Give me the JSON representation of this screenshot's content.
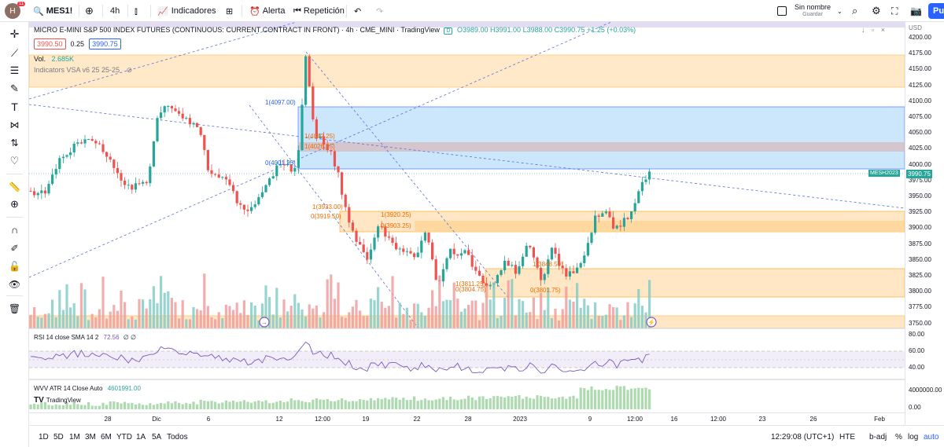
{
  "toolbar": {
    "symbol": "MES1!",
    "badge": "11",
    "interval": "4h",
    "indicators": "Indicadores",
    "alert": "Alerta",
    "replay": "Repetición",
    "layout_name": "Sin nombre",
    "save": "Guardar",
    "publish": "Pu"
  },
  "header": {
    "title": "MICRO E-MINI S&P 500 INDEX FUTURES (CONTINUOUS: CURRENT CONTRACT IN FRONT) · 4h · CME_MINI · TradingView",
    "flag": "D",
    "ohlc": "O3989.00 H3991.00 L3988.00 C3990.75 +1.25 (+0.03%)",
    "bid": "3990.50",
    "spread": "0.25",
    "ask": "3990.75",
    "vol_label": "Vol.",
    "vol_value": "2.685K",
    "vsa": "Indicators VSA v6 25 25-25"
  },
  "rsi": {
    "label": "RSI 14 close SMA 14 2",
    "value": "72.56",
    "extra": "∅ ∅",
    "ticks": [
      "80.00",
      "60.00",
      "40.00"
    ]
  },
  "wvv": {
    "label": "WVV ATR 14 Close Auto",
    "value": "4601991.00",
    "ticks": [
      "4000000.00",
      "0.00"
    ],
    "logo": "TradingView"
  },
  "price_axis": {
    "currency": "USD",
    "ticks": [
      "4200.00",
      "4175.00",
      "4150.00",
      "4125.00",
      "4100.00",
      "4075.00",
      "4050.00",
      "4025.00",
      "4000.00",
      "3975.00",
      "3950.00",
      "3925.00",
      "3900.00",
      "3875.00",
      "3850.00",
      "3825.00",
      "3800.00",
      "3775.00",
      "3750.00"
    ],
    "symbol_tag": "MESH2023",
    "last_price": "3990.75"
  },
  "time_axis": [
    "28",
    "Dic",
    "6",
    "12",
    "12:00",
    "19",
    "22",
    "28",
    "2023",
    "9",
    "12:00",
    "16",
    "12:00",
    "23",
    "26",
    "Feb"
  ],
  "fib_labels": [
    "1(4097.00)",
    "0(4001.25)",
    "1(4026.75)",
    "1(4042.25)",
    "1(3933.00)",
    "0(3919.50)",
    "1(3920.25)",
    "0(3903.25)",
    "1(3811.25)",
    "0(3804.75)",
    "0(3801.75)",
    "1(3848.50)"
  ],
  "bottom": {
    "ranges": [
      "1D",
      "5D",
      "1M",
      "3M",
      "6M",
      "YTD",
      "1A",
      "5A",
      "Todos"
    ],
    "clock": "12:29:08 (UTC+1)",
    "session": "HTE",
    "adj": "b-adj",
    "pct": "%",
    "log": "log",
    "auto": "auto"
  },
  "colors": {
    "up": "#26a69a",
    "down": "#ef5350",
    "zone_orange": "#ffe0b2",
    "zone_blue": "#bbdefb",
    "rsi": "#7e57c2",
    "accent": "#2962ff"
  }
}
